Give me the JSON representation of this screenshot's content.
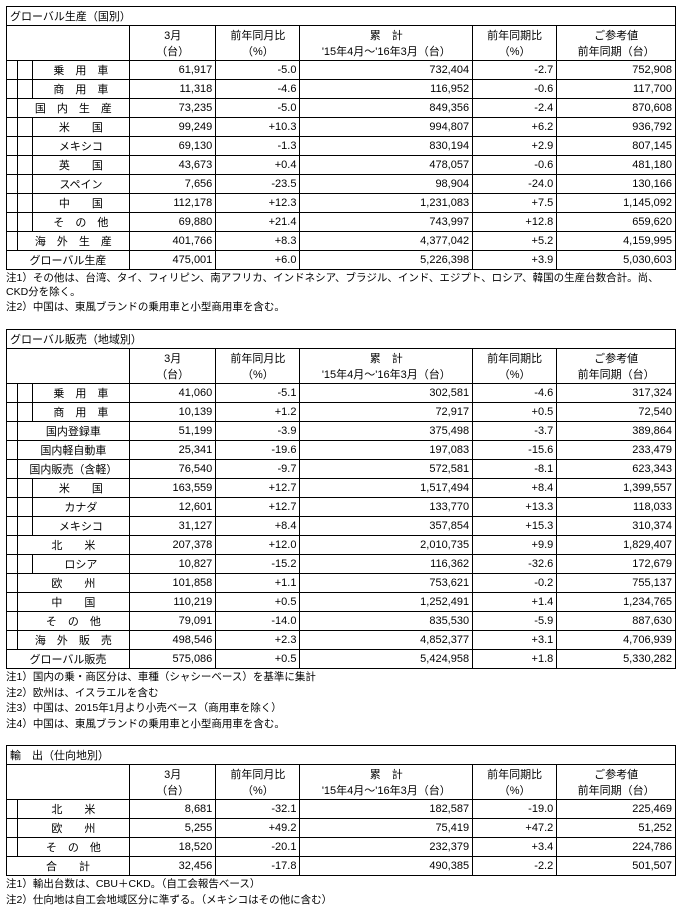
{
  "t1": {
    "title": "グローバル生産（国別）",
    "hdr": [
      "3月\n（台）",
      "前年同月比\n（%）",
      "累　計\n'15年4月～'16年3月（台）",
      "前年同期比\n（%）",
      "ご参考値\n前年同期（台）"
    ],
    "rows": [
      {
        "lvl": 2,
        "lab": "乗　用　車",
        "v": [
          "61,917",
          "-5.0",
          "732,404",
          "-2.7",
          "752,908"
        ]
      },
      {
        "lvl": 2,
        "lab": "商　用　車",
        "v": [
          "11,318",
          "-4.6",
          "116,952",
          "-0.6",
          "117,700"
        ]
      },
      {
        "lvl": 1,
        "lab": "国　内　生　産",
        "v": [
          "73,235",
          "-5.0",
          "849,356",
          "-2.4",
          "870,608"
        ]
      },
      {
        "lvl": 2,
        "lab": "米　　国",
        "v": [
          "99,249",
          "+10.3",
          "994,807",
          "+6.2",
          "936,792"
        ]
      },
      {
        "lvl": 2,
        "lab": "メキシコ",
        "v": [
          "69,130",
          "-1.3",
          "830,194",
          "+2.9",
          "807,145"
        ]
      },
      {
        "lvl": 2,
        "lab": "英　　国",
        "v": [
          "43,673",
          "+0.4",
          "478,057",
          "-0.6",
          "481,180"
        ]
      },
      {
        "lvl": 2,
        "lab": "スペイン",
        "v": [
          "7,656",
          "-23.5",
          "98,904",
          "-24.0",
          "130,166"
        ]
      },
      {
        "lvl": 2,
        "lab": "中　　国",
        "v": [
          "112,178",
          "+12.3",
          "1,231,083",
          "+7.5",
          "1,145,092"
        ]
      },
      {
        "lvl": 2,
        "lab": "そ　の　他",
        "v": [
          "69,880",
          "+21.4",
          "743,997",
          "+12.8",
          "659,620"
        ]
      },
      {
        "lvl": 1,
        "lab": "海　外　生　産",
        "v": [
          "401,766",
          "+8.3",
          "4,377,042",
          "+5.2",
          "4,159,995"
        ]
      },
      {
        "lvl": 0,
        "lab": "グローバル生産",
        "v": [
          "475,001",
          "+6.0",
          "5,226,398",
          "+3.9",
          "5,030,603"
        ]
      }
    ],
    "notes": [
      "注1）その他は、台湾、タイ、フィリピン、南アフリカ、インドネシア、ブラジル、インド、エジプト、ロシア、韓国の生産台数合計。尚、CKD分を除く。",
      "注2）中国は、東風ブランドの乗用車と小型商用車を含む。"
    ]
  },
  "t2": {
    "title": "グローバル販売（地域別）",
    "hdr": [
      "3月\n（台）",
      "前年同月比\n（%）",
      "累　計\n'15年4月～'16年3月（台）",
      "前年同期比\n（%）",
      "ご参考値\n前年同期（台）"
    ],
    "rows": [
      {
        "lvl": 2,
        "lab": "乗　用　車",
        "v": [
          "41,060",
          "-5.1",
          "302,581",
          "-4.6",
          "317,324"
        ]
      },
      {
        "lvl": 2,
        "lab": "商　用　車",
        "v": [
          "10,139",
          "+1.2",
          "72,917",
          "+0.5",
          "72,540"
        ]
      },
      {
        "lvl": 1,
        "lab": "国内登録車",
        "v": [
          "51,199",
          "-3.9",
          "375,498",
          "-3.7",
          "389,864"
        ]
      },
      {
        "lvl": 1,
        "lab": "国内軽自動車",
        "v": [
          "25,341",
          "-19.6",
          "197,083",
          "-15.6",
          "233,479"
        ]
      },
      {
        "lvl": 1,
        "lab": "国内販売（含軽）",
        "v": [
          "76,540",
          "-9.7",
          "572,581",
          "-8.1",
          "623,343"
        ]
      },
      {
        "lvl": 2,
        "lab": "米　　国",
        "v": [
          "163,559",
          "+12.7",
          "1,517,494",
          "+8.4",
          "1,399,557"
        ]
      },
      {
        "lvl": 2,
        "lab": "カナダ",
        "v": [
          "12,601",
          "+12.7",
          "133,770",
          "+13.3",
          "118,033"
        ]
      },
      {
        "lvl": 2,
        "lab": "メキシコ",
        "v": [
          "31,127",
          "+8.4",
          "357,854",
          "+15.3",
          "310,374"
        ]
      },
      {
        "lvl": 1,
        "lab": "北　　米",
        "v": [
          "207,378",
          "+12.0",
          "2,010,735",
          "+9.9",
          "1,829,407"
        ]
      },
      {
        "lvl": 2,
        "lab": "ロシア",
        "v": [
          "10,827",
          "-15.2",
          "116,362",
          "-32.6",
          "172,679"
        ]
      },
      {
        "lvl": 1,
        "lab": "欧　　州",
        "v": [
          "101,858",
          "+1.1",
          "753,621",
          "-0.2",
          "755,137"
        ]
      },
      {
        "lvl": 1,
        "lab": "中　　国",
        "v": [
          "110,219",
          "+0.5",
          "1,252,491",
          "+1.4",
          "1,234,765"
        ]
      },
      {
        "lvl": 1,
        "lab": "そ　の　他",
        "v": [
          "79,091",
          "-14.0",
          "835,530",
          "-5.9",
          "887,630"
        ]
      },
      {
        "lvl": 1,
        "lab": "海　外　販　売",
        "v": [
          "498,546",
          "+2.3",
          "4,852,377",
          "+3.1",
          "4,706,939"
        ]
      },
      {
        "lvl": 0,
        "lab": "グローバル販売",
        "v": [
          "575,086",
          "+0.5",
          "5,424,958",
          "+1.8",
          "5,330,282"
        ]
      }
    ],
    "notes": [
      "注1）国内の乗・商区分は、車種（シャシーベース）を基準に集計",
      "注2）欧州は、イスラエルを含む",
      "注3）中国は、2015年1月より小売ベース（商用車を除く）",
      "注4）中国は、東風ブランドの乗用車と小型商用車を含む。"
    ]
  },
  "t3": {
    "title": "輸　出（仕向地別）",
    "hdr": [
      "3月\n（台）",
      "前年同月比\n（%）",
      "累　計\n'15年4月～'16年3月（台）",
      "前年同期比\n（%）",
      "ご参考値\n前年同期（台）"
    ],
    "rows": [
      {
        "lvl": 1,
        "lab": "北　　米",
        "v": [
          "8,681",
          "-32.1",
          "182,587",
          "-19.0",
          "225,469"
        ]
      },
      {
        "lvl": 1,
        "lab": "欧　　州",
        "v": [
          "5,255",
          "+49.2",
          "75,419",
          "+47.2",
          "51,252"
        ]
      },
      {
        "lvl": 1,
        "lab": "そ　の　他",
        "v": [
          "18,520",
          "-20.1",
          "232,379",
          "+3.4",
          "224,786"
        ]
      },
      {
        "lvl": 0,
        "lab": "合　　計",
        "v": [
          "32,456",
          "-17.8",
          "490,385",
          "-2.2",
          "501,507"
        ]
      }
    ],
    "notes": [
      "注1）輸出台数は、CBU＋CKD。（自工会報告ベース）",
      "注2）仕向地は自工会地域区分に準ずる。（メキシコはその他に含む）"
    ]
  }
}
